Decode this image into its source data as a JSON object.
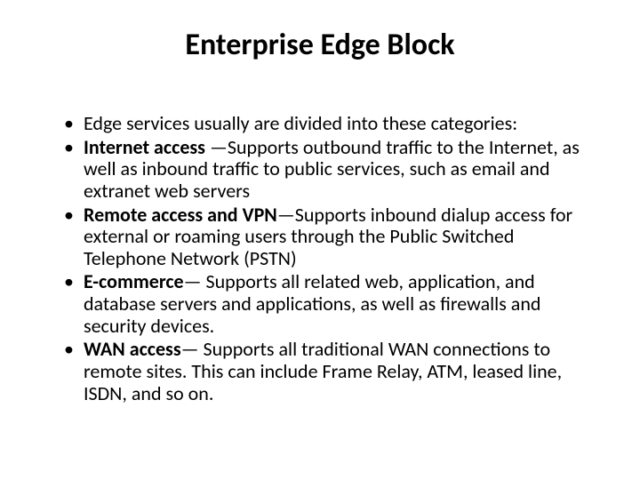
{
  "title": "Enterprise Edge Block",
  "bullets": [
    {
      "lead": "",
      "text": "Edge services usually are divided into these categories:"
    },
    {
      "lead": "Internet access ",
      "text": "—Supports outbound traffic to the Internet, as well as inbound traffic to public services, such as email and extranet web servers"
    },
    {
      "lead": "Remote access and VPN",
      "text": "—Supports inbound dialup access for external or roaming users through the Public Switched Telephone Network (PSTN)"
    },
    {
      "lead": "E-commerce",
      "text": "— Supports all related web, application, and database servers and applications, as well as firewalls and security devices."
    },
    {
      "lead": "WAN access",
      "text": "— Supports all traditional WAN connections to remote sites. This can include Frame Relay, ATM, leased line, ISDN, and so on."
    }
  ]
}
